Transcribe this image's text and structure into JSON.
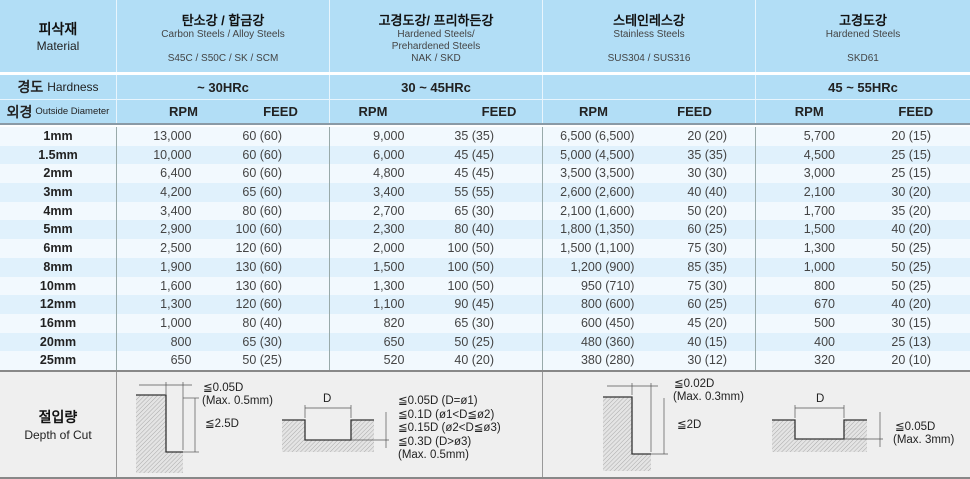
{
  "header": {
    "label_ko": "피삭재",
    "label_en": "Material",
    "materials": [
      {
        "ko": "탄소강 / 합금강",
        "en": [
          "Carbon Steels / Alloy Steels",
          "",
          "S45C / S50C / SK / SCM"
        ],
        "hardness": "~ 30HRc"
      },
      {
        "ko": "고경도강/ 프리하든강",
        "en": [
          "Hardened Steels/",
          "Prehardened Steels",
          "NAK / SKD"
        ],
        "hardness": "30 ~ 45HRc"
      },
      {
        "ko": "스테인레스강",
        "en": [
          "Stainless Steels",
          "",
          "SUS304 / SUS316"
        ],
        "hardness": ""
      },
      {
        "ko": "고경도강",
        "en": [
          "Hardened Steels",
          "",
          "SKD61"
        ],
        "hardness": "45 ~ 55HRc"
      }
    ]
  },
  "hardness_label": {
    "ko": "경도",
    "en": "Hardness"
  },
  "diameter_label": {
    "ko": "외경",
    "en": "Outside Diameter"
  },
  "col_rpm": "RPM",
  "col_feed": "FEED",
  "rows": [
    [
      "1mm",
      "13,000",
      "60 (60)",
      "9,000",
      "35 (35)",
      "6,500 (6,500)",
      "20 (20)",
      "5,700",
      "20 (15)"
    ],
    [
      "1.5mm",
      "10,000",
      "60 (60)",
      "6,000",
      "45 (45)",
      "5,000 (4,500)",
      "35 (35)",
      "4,500",
      "25 (15)"
    ],
    [
      "2mm",
      "6,400",
      "60 (60)",
      "4,800",
      "45 (45)",
      "3,500 (3,500)",
      "30 (30)",
      "3,000",
      "25 (15)"
    ],
    [
      "3mm",
      "4,200",
      "65 (60)",
      "3,400",
      "55 (55)",
      "2,600 (2,600)",
      "40 (40)",
      "2,100",
      "30 (20)"
    ],
    [
      "4mm",
      "3,400",
      "80 (60)",
      "2,700",
      "65 (30)",
      "2,100 (1,600)",
      "50 (20)",
      "1,700",
      "35 (20)"
    ],
    [
      "5mm",
      "2,900",
      "100 (60)",
      "2,300",
      "80 (40)",
      "1,800 (1,350)",
      "60 (25)",
      "1,500",
      "40 (20)"
    ],
    [
      "6mm",
      "2,500",
      "120 (60)",
      "2,000",
      "100 (50)",
      "1,500 (1,100)",
      "75 (30)",
      "1,300",
      "50 (25)"
    ],
    [
      "8mm",
      "1,900",
      "130 (60)",
      "1,500",
      "100 (50)",
      "1,200 (900)",
      "85 (35)",
      "1,000",
      "50 (25)"
    ],
    [
      "10mm",
      "1,600",
      "130 (60)",
      "1,300",
      "100 (50)",
      "950 (710)",
      "75 (30)",
      "800",
      "50 (25)"
    ],
    [
      "12mm",
      "1,300",
      "120 (60)",
      "1,100",
      "90 (45)",
      "800 (600)",
      "60 (25)",
      "670",
      "40 (20)"
    ],
    [
      "16mm",
      "1,000",
      "80 (40)",
      "820",
      "65 (30)",
      "600 (450)",
      "45 (20)",
      "500",
      "30 (15)"
    ],
    [
      "20mm",
      "800",
      "65 (30)",
      "650",
      "50 (25)",
      "480 (360)",
      "40 (15)",
      "400",
      "25 (13)"
    ],
    [
      "25mm",
      "650",
      "50 (25)",
      "520",
      "40 (20)",
      "380 (280)",
      "30 (12)",
      "320",
      "20 (10)"
    ]
  ],
  "depth": {
    "ko": "절입량",
    "en": "Depth of Cut",
    "left": {
      "side_radial": "≦0.05D",
      "side_radial_max": "(Max. 0.5mm)",
      "side_axial": "≦2.5D",
      "slot_width": "D",
      "slot_lines": [
        "≦0.05D  (D=ø1)",
        "≦0.1D  (ø1<D≦ø2)",
        "≦0.15D  (ø2<D≦ø3)",
        "≦0.3D  (D>ø3)",
        "(Max. 0.5mm)"
      ]
    },
    "right": {
      "side_radial": "≦0.02D",
      "side_radial_max": "(Max. 0.3mm)",
      "side_axial": "≦2D",
      "slot_width": "D",
      "slot_lines": [
        "≦0.05D",
        "(Max. 3mm)"
      ]
    }
  },
  "colors": {
    "header_bg": "#b2def6",
    "row_light": "#f2f9fe",
    "row_dark": "#e0f1fc",
    "bottom_bg": "#efefef"
  }
}
